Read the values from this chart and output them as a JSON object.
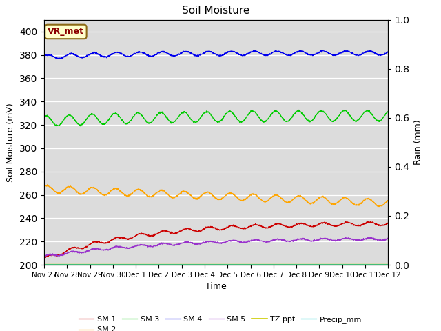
{
  "title": "Soil Moisture",
  "ylabel_left": "Soil Moisture (mV)",
  "ylabel_right": "Rain (mm)",
  "xlabel": "Time",
  "ylim_left": [
    200,
    410
  ],
  "ylim_right": [
    0.0,
    1.0
  ],
  "yticks_left": [
    200,
    220,
    240,
    260,
    280,
    300,
    320,
    340,
    360,
    380,
    400
  ],
  "yticks_right": [
    0.0,
    0.2,
    0.4,
    0.6,
    0.8,
    1.0
  ],
  "xtick_labels": [
    "Nov 27",
    "Nov 28",
    "Nov 29",
    "Nov 30",
    "Dec 1",
    "Dec 2",
    "Dec 3",
    "Dec 4",
    "Dec 5",
    "Dec 6",
    "Dec 7",
    "Dec 8",
    "Dec 9",
    "Dec 10",
    "Dec 11",
    "Dec 12"
  ],
  "bg_color": "#dcdcdc",
  "annotation_text": "VR_met",
  "annotation_color": "#8b0000",
  "annotation_bg": "#ffffcc",
  "annotation_border": "#8b6914",
  "sm1_color": "#cc0000",
  "sm2_color": "#ffa500",
  "sm3_color": "#00cc00",
  "sm4_color": "#0000ee",
  "sm5_color": "#9933cc",
  "precip_color": "#00cccc",
  "tz_color": "#cccc00",
  "n_points": 1440,
  "figsize": [
    6.4,
    4.8
  ],
  "dpi": 100
}
